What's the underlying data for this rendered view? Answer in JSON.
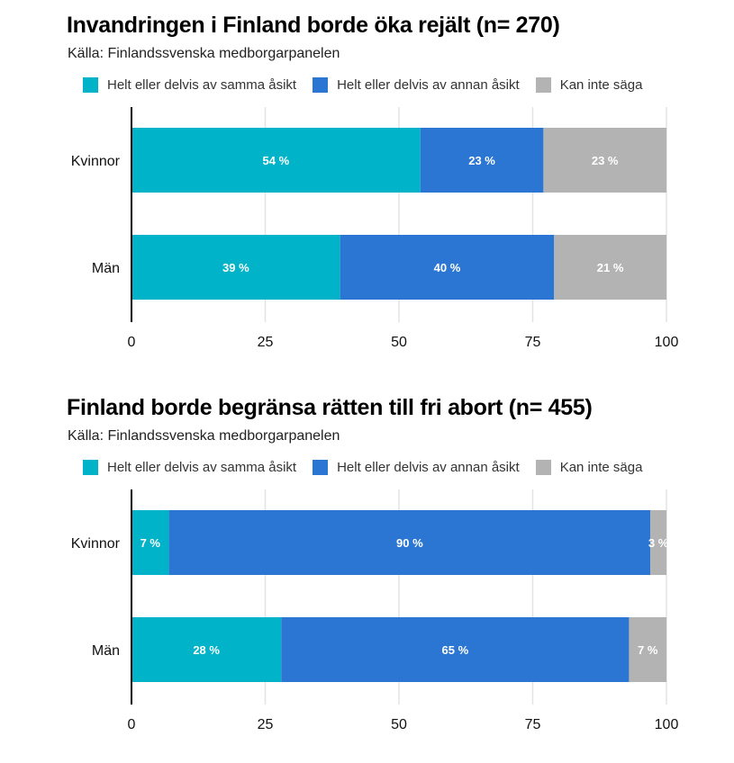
{
  "colors": {
    "agree": "#00b3c8",
    "disagree": "#2a76d2",
    "unsure": "#b3b3b3",
    "grid": "#e3e3e3",
    "axis": "#000000"
  },
  "chart_data": [
    {
      "type": "bar",
      "orientation": "horizontal",
      "stacked": true,
      "title": "Invandringen i Finland borde öka rejält (n= 270)",
      "subtitle": "Källa: Finlandssvenska medborgarpanelen",
      "categories": [
        "Kvinnor",
        "Män"
      ],
      "series": [
        {
          "name": "Helt eller delvis av samma åsikt",
          "color_key": "agree",
          "values": [
            54,
            39
          ]
        },
        {
          "name": "Helt eller delvis av annan åsikt",
          "color_key": "disagree",
          "values": [
            23,
            40
          ]
        },
        {
          "name": "Kan inte säga",
          "color_key": "unsure",
          "values": [
            23,
            21
          ]
        }
      ],
      "value_suffix": " %",
      "xlim": [
        0,
        100
      ],
      "xticks": [
        "0",
        "25",
        "50",
        "75",
        "100"
      ],
      "xtick_values": [
        0,
        25,
        50,
        75,
        100
      ],
      "grid": true,
      "legend": "top-left"
    },
    {
      "type": "bar",
      "orientation": "horizontal",
      "stacked": true,
      "title": "Finland borde begränsa rätten till fri abort (n= 455)",
      "subtitle": "Källa: Finlandssvenska medborgarpanelen",
      "categories": [
        "Kvinnor",
        "Män"
      ],
      "series": [
        {
          "name": "Helt eller delvis av samma åsikt",
          "color_key": "agree",
          "values": [
            7,
            28
          ]
        },
        {
          "name": "Helt eller delvis av annan åsikt",
          "color_key": "disagree",
          "values": [
            90,
            65
          ]
        },
        {
          "name": "Kan inte säga",
          "color_key": "unsure",
          "values": [
            3,
            7
          ]
        }
      ],
      "value_suffix": " %",
      "xlim": [
        0,
        100
      ],
      "xticks": [
        "0",
        "25",
        "50",
        "75",
        "100"
      ],
      "xtick_values": [
        0,
        25,
        50,
        75,
        100
      ],
      "grid": true,
      "legend": "top-left"
    }
  ]
}
